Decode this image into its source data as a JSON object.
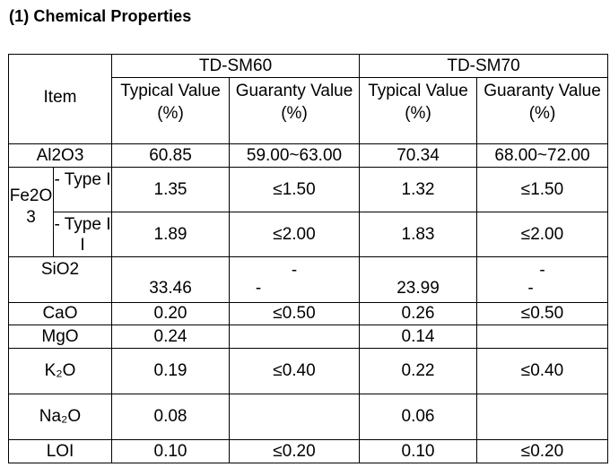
{
  "heading": "(1)  Chemical Properties",
  "table": {
    "item_header": "Item",
    "groups": [
      "TD-SM60",
      "TD-SM70"
    ],
    "col_typical": "Typical Value (%)",
    "col_guaranty": "Guaranty Value (%)",
    "rows": {
      "al2o3": {
        "label": "Al2O3",
        "sm60_typ": "60.85",
        "sm60_guar": "59.00~63.00",
        "sm70_typ": "70.34",
        "sm70_guar": "68.00~72.00"
      },
      "fe2o3": {
        "label": "Fe2O3",
        "type1": {
          "label": "- Type I",
          "sm60_typ": "1.35",
          "sm60_guar": "≤1.50",
          "sm70_typ": "1.32",
          "sm70_guar": "≤1.50"
        },
        "type2": {
          "label": "- Type II",
          "sm60_typ": "1.89",
          "sm60_guar": "≤2.00",
          "sm70_typ": "1.83",
          "sm70_guar": "≤2.00"
        }
      },
      "sio2": {
        "label": "SiO2",
        "sm60_typ": "33.46",
        "sm60_guar": "-",
        "sm70_typ": "23.99",
        "sm70_guar": "-"
      },
      "cao": {
        "label": "CaO",
        "sm60_typ": "0.20",
        "sm60_guar": "≤0.50",
        "sm70_typ": "0.26",
        "sm70_guar": "≤0.50"
      },
      "mgo": {
        "label": "MgO",
        "sm60_typ": "0.24",
        "sm60_guar": "",
        "sm70_typ": "0.14",
        "sm70_guar": ""
      },
      "k2o": {
        "label": "K₂O",
        "sm60_typ": "0.19",
        "sm60_guar": "≤0.40",
        "sm70_typ": "0.22",
        "sm70_guar": "≤0.40"
      },
      "na2o": {
        "label": "Na₂O",
        "sm60_typ": "0.08",
        "sm60_guar": "",
        "sm70_typ": "0.06",
        "sm70_guar": ""
      },
      "loi": {
        "label": "LOI",
        "sm60_typ": "0.10",
        "sm60_guar": "≤0.20",
        "sm70_typ": "0.10",
        "sm70_guar": "≤0.20"
      }
    }
  }
}
